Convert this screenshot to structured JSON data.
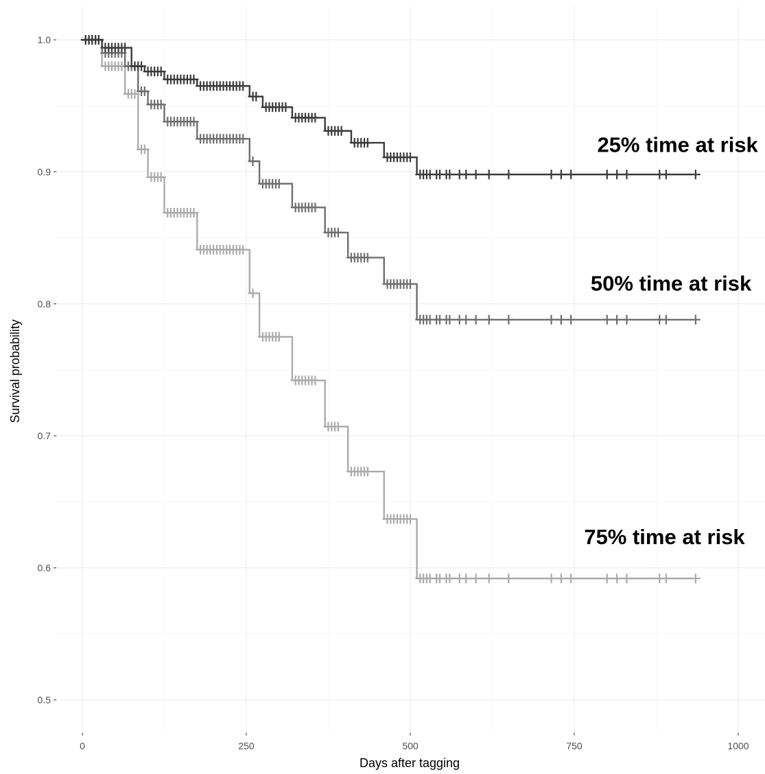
{
  "chart_data": {
    "type": "line",
    "subtype": "kaplan-meier step curves with censoring marks",
    "title": "",
    "xlabel": "Days after tagging",
    "ylabel": "Survival probability",
    "xlim": [
      0,
      1000
    ],
    "ylim": [
      0.5,
      1.0
    ],
    "x_ticks": [
      0,
      250,
      500,
      750,
      1000
    ],
    "y_ticks": [
      0.5,
      0.6,
      0.7,
      0.8,
      0.9,
      1.0
    ],
    "grid": true,
    "legend": "none",
    "series": [
      {
        "name": "25% time at risk",
        "color": "#3b3b3b",
        "x": [
          0,
          30,
          75,
          95,
          125,
          175,
          255,
          275,
          320,
          370,
          410,
          460,
          510,
          930
        ],
        "y": [
          1.0,
          0.994,
          0.98,
          0.976,
          0.97,
          0.965,
          0.957,
          0.949,
          0.941,
          0.931,
          0.922,
          0.911,
          0.898,
          0.898
        ],
        "censored_x": [
          5,
          10,
          15,
          20,
          25,
          35,
          40,
          45,
          50,
          55,
          60,
          65,
          80,
          85,
          90,
          100,
          105,
          110,
          115,
          120,
          130,
          135,
          140,
          145,
          150,
          155,
          160,
          165,
          170,
          180,
          185,
          190,
          195,
          200,
          205,
          210,
          215,
          220,
          225,
          230,
          235,
          240,
          245,
          260,
          265,
          280,
          285,
          290,
          295,
          300,
          305,
          310,
          325,
          330,
          335,
          340,
          345,
          350,
          355,
          375,
          380,
          385,
          390,
          395,
          415,
          420,
          425,
          430,
          435,
          465,
          470,
          475,
          480,
          485,
          490,
          495,
          500,
          515,
          520,
          525,
          530,
          540,
          545,
          555,
          560,
          575,
          585,
          600,
          620,
          650,
          715,
          730,
          745,
          800,
          815,
          830,
          880,
          890,
          935
        ]
      },
      {
        "name": "50% time at risk",
        "color": "#6e6e6e",
        "x": [
          0,
          30,
          65,
          85,
          100,
          125,
          175,
          255,
          270,
          320,
          370,
          405,
          460,
          510,
          930
        ],
        "y": [
          1.0,
          0.99,
          0.98,
          0.961,
          0.951,
          0.938,
          0.925,
          0.908,
          0.891,
          0.873,
          0.854,
          0.835,
          0.815,
          0.788,
          0.788
        ],
        "censored_x": [
          5,
          10,
          15,
          20,
          25,
          35,
          40,
          45,
          50,
          55,
          60,
          70,
          75,
          80,
          90,
          95,
          105,
          110,
          115,
          120,
          130,
          135,
          140,
          145,
          150,
          155,
          160,
          165,
          170,
          180,
          185,
          190,
          195,
          200,
          205,
          210,
          215,
          220,
          225,
          230,
          235,
          240,
          245,
          260,
          275,
          280,
          285,
          290,
          295,
          300,
          325,
          330,
          335,
          340,
          345,
          350,
          355,
          375,
          380,
          385,
          390,
          410,
          415,
          420,
          425,
          430,
          435,
          465,
          470,
          475,
          480,
          485,
          490,
          495,
          500,
          515,
          520,
          525,
          530,
          540,
          545,
          555,
          560,
          575,
          585,
          600,
          620,
          650,
          715,
          730,
          745,
          800,
          815,
          830,
          880,
          890,
          935
        ]
      },
      {
        "name": "75% time at risk",
        "color": "#ababab",
        "x": [
          0,
          30,
          65,
          85,
          100,
          125,
          175,
          255,
          270,
          320,
          370,
          405,
          460,
          510,
          930
        ],
        "y": [
          1.0,
          0.98,
          0.959,
          0.917,
          0.896,
          0.869,
          0.841,
          0.808,
          0.775,
          0.742,
          0.707,
          0.673,
          0.637,
          0.592,
          0.592
        ],
        "censored_x": [
          5,
          10,
          15,
          20,
          25,
          35,
          40,
          45,
          50,
          55,
          60,
          70,
          75,
          80,
          90,
          95,
          105,
          110,
          115,
          120,
          130,
          135,
          140,
          145,
          150,
          155,
          160,
          165,
          170,
          180,
          185,
          190,
          195,
          200,
          205,
          210,
          215,
          220,
          225,
          230,
          235,
          240,
          245,
          260,
          275,
          280,
          285,
          290,
          295,
          300,
          325,
          330,
          335,
          340,
          345,
          350,
          355,
          375,
          380,
          385,
          390,
          410,
          415,
          420,
          425,
          430,
          435,
          465,
          470,
          475,
          480,
          485,
          490,
          495,
          500,
          515,
          520,
          525,
          530,
          540,
          545,
          555,
          560,
          575,
          585,
          600,
          620,
          650,
          715,
          730,
          745,
          800,
          815,
          830,
          880,
          890,
          935
        ]
      }
    ],
    "annotations": [
      {
        "text": "25% time at risk",
        "x": 785,
        "y": 0.915
      },
      {
        "text": "50% time at risk",
        "x": 775,
        "y": 0.81
      },
      {
        "text": "75% time at risk",
        "x": 765,
        "y": 0.618
      }
    ]
  }
}
